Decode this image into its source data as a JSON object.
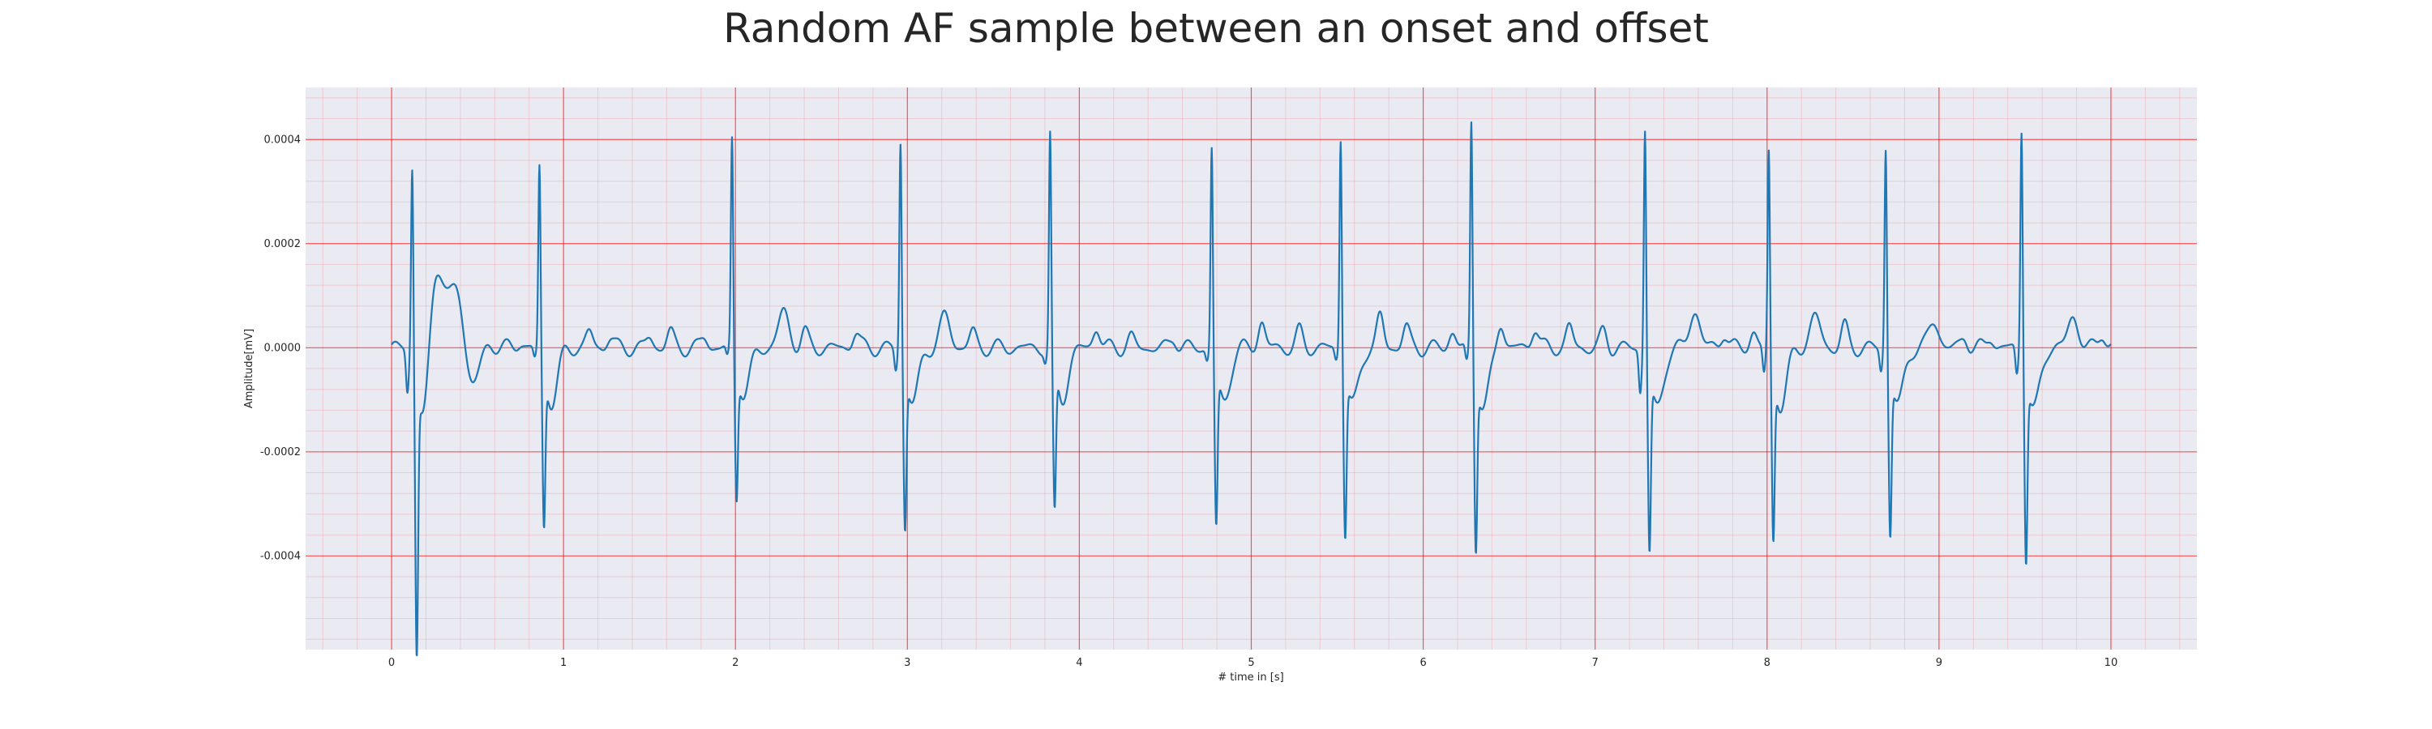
{
  "chart_data": {
    "type": "line",
    "title": "Random AF sample between an onset and offset",
    "xlabel": "# time in [s]",
    "ylabel": "Amplitude[mV]",
    "xlim": [
      -0.5,
      10.5
    ],
    "ylim": [
      -0.00058,
      0.0005
    ],
    "xticks": [
      0,
      1,
      2,
      3,
      4,
      5,
      6,
      7,
      8,
      9,
      10
    ],
    "xtick_labels": [
      "0",
      "1",
      "2",
      "3",
      "4",
      "5",
      "6",
      "7",
      "8",
      "9",
      "10"
    ],
    "yticks": [
      -0.0004,
      -0.0002,
      0.0,
      0.0002,
      0.0004
    ],
    "ytick_labels": [
      "-0.0004",
      "-0.0002",
      "0.0000",
      "0.0002",
      "0.0004"
    ],
    "grid": {
      "major": true,
      "minor": true,
      "color": "#ff0000"
    },
    "colors": {
      "line": "#1f77b4",
      "background": "#eaeaf2",
      "grid": "#ff0000"
    },
    "beats": [
      {
        "t": 0.12,
        "r": 0.00037,
        "s": -0.00052,
        "q": -8e-05
      },
      {
        "t": 0.86,
        "r": 0.00036,
        "s": -0.0003,
        "q": -2e-05
      },
      {
        "t": 1.98,
        "r": 0.00041,
        "s": -0.00025,
        "q": -2e-05
      },
      {
        "t": 2.96,
        "r": 0.00041,
        "s": -0.0003,
        "q": -4e-05
      },
      {
        "t": 3.83,
        "r": 0.00042,
        "s": -0.00028,
        "q": -2e-05
      },
      {
        "t": 4.77,
        "r": 0.0004,
        "s": -0.0003,
        "q": -2e-05
      },
      {
        "t": 5.52,
        "r": 0.00042,
        "s": -0.00031,
        "q": -2e-05
      },
      {
        "t": 6.28,
        "r": 0.00045,
        "s": -0.00033,
        "q": -3e-05
      },
      {
        "t": 7.29,
        "r": 0.00044,
        "s": -0.00034,
        "q": -8e-05
      },
      {
        "t": 8.01,
        "r": 0.00039,
        "s": -0.00032,
        "q": -5e-05
      },
      {
        "t": 8.69,
        "r": 0.0004,
        "s": -0.00031,
        "q": -4e-05
      },
      {
        "t": 9.48,
        "r": 0.00044,
        "s": -0.00035,
        "q": -5e-05
      }
    ],
    "fwaves": [
      {
        "t": 0.26,
        "a": 0.00017,
        "w": 0.05
      },
      {
        "t": 0.39,
        "a": 0.00014,
        "w": 0.04
      },
      {
        "t": 0.45,
        "a": -9e-05,
        "w": 0.05
      },
      {
        "t": 0.57,
        "a": 1e-05,
        "w": 0.03
      },
      {
        "t": 0.75,
        "a": 1e-05,
        "w": 0.02
      },
      {
        "t": 1.15,
        "a": 3e-05,
        "w": 0.02
      },
      {
        "t": 1.27,
        "a": 2e-05,
        "w": 0.02
      },
      {
        "t": 1.5,
        "a": 2e-05,
        "w": 0.02
      },
      {
        "t": 1.62,
        "a": 3e-05,
        "w": 0.02
      },
      {
        "t": 1.82,
        "a": 2e-05,
        "w": 0.02
      },
      {
        "t": 2.28,
        "a": 7e-05,
        "w": 0.03
      },
      {
        "t": 2.4,
        "a": 3e-05,
        "w": 0.02
      },
      {
        "t": 2.7,
        "a": 3e-05,
        "w": 0.02
      },
      {
        "t": 3.22,
        "a": 6e-05,
        "w": 0.03
      },
      {
        "t": 3.38,
        "a": 3e-05,
        "w": 0.02
      },
      {
        "t": 4.1,
        "a": 4e-05,
        "w": 0.02
      },
      {
        "t": 4.3,
        "a": 2e-05,
        "w": 0.02
      },
      {
        "t": 4.55,
        "a": 2e-05,
        "w": 0.02
      },
      {
        "t": 5.06,
        "a": 5e-05,
        "w": 0.02
      },
      {
        "t": 5.28,
        "a": 3e-05,
        "w": 0.02
      },
      {
        "t": 5.75,
        "a": 6e-05,
        "w": 0.02
      },
      {
        "t": 5.9,
        "a": 4e-05,
        "w": 0.02
      },
      {
        "t": 6.17,
        "a": 3e-05,
        "w": 0.02
      },
      {
        "t": 6.45,
        "a": 5e-05,
        "w": 0.02
      },
      {
        "t": 6.65,
        "a": 4e-05,
        "w": 0.02
      },
      {
        "t": 6.85,
        "a": 4e-05,
        "w": 0.02
      },
      {
        "t": 7.05,
        "a": 3e-05,
        "w": 0.02
      },
      {
        "t": 7.58,
        "a": 7e-05,
        "w": 0.03
      },
      {
        "t": 7.75,
        "a": 3e-05,
        "w": 0.02
      },
      {
        "t": 7.92,
        "a": 3e-05,
        "w": 0.02
      },
      {
        "t": 8.28,
        "a": 6e-05,
        "w": 0.03
      },
      {
        "t": 8.45,
        "a": 4e-05,
        "w": 0.02
      },
      {
        "t": 8.97,
        "a": 5e-05,
        "w": 0.03
      },
      {
        "t": 9.15,
        "a": 2e-05,
        "w": 0.02
      },
      {
        "t": 9.3,
        "a": 2e-05,
        "w": 0.02
      },
      {
        "t": 9.78,
        "a": 6e-05,
        "w": 0.03
      },
      {
        "t": 9.95,
        "a": 3e-05,
        "w": 0.02
      }
    ]
  }
}
